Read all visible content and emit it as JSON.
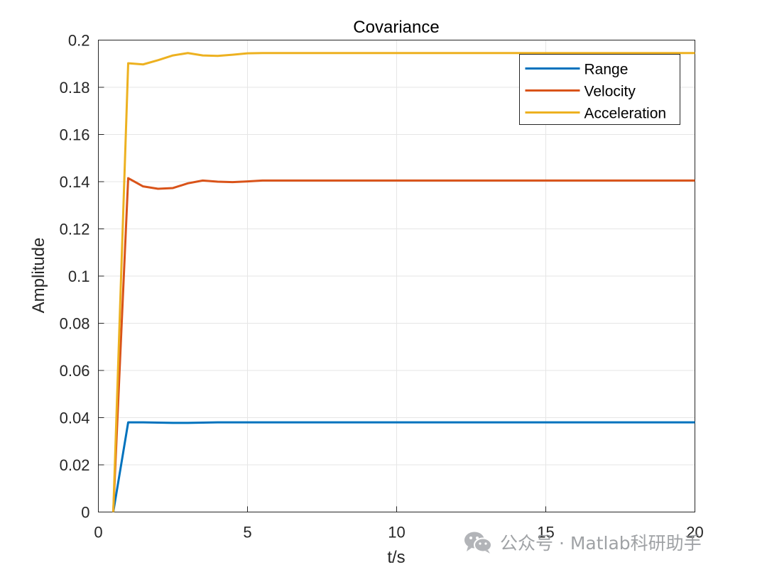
{
  "chart_data": {
    "type": "line",
    "title": "Covariance",
    "xlabel": "t/s",
    "ylabel": "Amplitude",
    "xlim": [
      0,
      20
    ],
    "ylim": [
      0,
      0.2
    ],
    "xticks": [
      0,
      5,
      10,
      15,
      20
    ],
    "xtick_labels": [
      "0",
      "5",
      "10",
      "15",
      "20"
    ],
    "yticks": [
      0,
      0.02,
      0.04,
      0.06,
      0.08,
      0.1,
      0.12,
      0.14,
      0.16,
      0.18,
      0.2
    ],
    "ytick_labels": [
      "0",
      "0.02",
      "0.04",
      "0.06",
      "0.08",
      "0.1",
      "0.12",
      "0.14",
      "0.16",
      "0.18",
      "0.2"
    ],
    "grid": true,
    "legend_position": "top-right",
    "series": [
      {
        "name": "Range",
        "color": "#0072BD",
        "x": [
          0.5,
          1.0,
          1.5,
          2.0,
          2.5,
          3.0,
          3.5,
          4.0,
          4.5,
          5.0,
          6.0,
          20.0
        ],
        "y": [
          0.0,
          0.038,
          0.038,
          0.0379,
          0.0378,
          0.0378,
          0.0379,
          0.038,
          0.038,
          0.038,
          0.038,
          0.038
        ]
      },
      {
        "name": "Velocity",
        "color": "#D95319",
        "x": [
          0.5,
          1.0,
          1.5,
          2.0,
          2.5,
          3.0,
          3.5,
          4.0,
          4.5,
          5.0,
          5.5,
          6.0,
          20.0
        ],
        "y": [
          0.0,
          0.1415,
          0.138,
          0.137,
          0.1373,
          0.1393,
          0.1405,
          0.14,
          0.1398,
          0.1401,
          0.1405,
          0.1405,
          0.1405
        ]
      },
      {
        "name": "Acceleration",
        "color": "#EDB120",
        "x": [
          0.5,
          1.0,
          1.5,
          2.0,
          2.5,
          3.0,
          3.5,
          4.0,
          4.5,
          5.0,
          5.5,
          6.0,
          20.0
        ],
        "y": [
          0.0,
          0.1902,
          0.1897,
          0.1915,
          0.1935,
          0.1945,
          0.1935,
          0.1933,
          0.1938,
          0.1944,
          0.1945,
          0.1945,
          0.1945
        ]
      }
    ]
  },
  "watermark": {
    "text": "公众号 · Matlab科研助手",
    "icon": "wechat-icon"
  }
}
